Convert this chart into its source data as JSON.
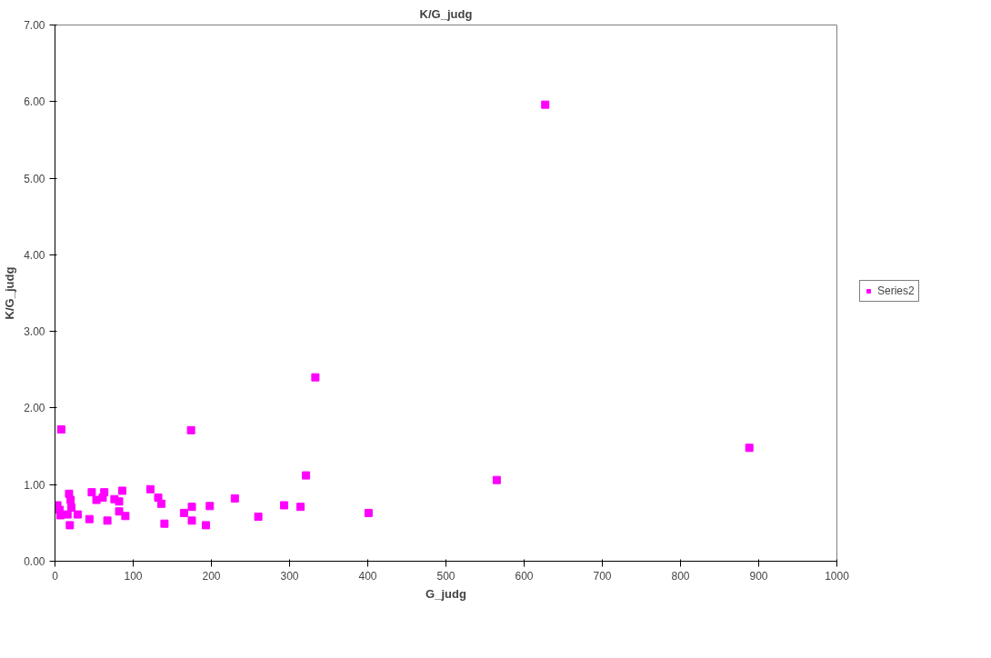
{
  "chart_data": {
    "type": "scatter",
    "title": "K/G_judg",
    "xlabel": "G_judg",
    "ylabel": "K/G_judg",
    "xlim": [
      0,
      1000
    ],
    "xticks": [
      0,
      100,
      200,
      300,
      400,
      500,
      600,
      700,
      800,
      900,
      1000
    ],
    "ylim": [
      0,
      7
    ],
    "yticks": [
      {
        "value": 0,
        "label": "0.00"
      },
      {
        "value": 1,
        "label": "1.00"
      },
      {
        "value": 2,
        "label": "2.00"
      },
      {
        "value": 3,
        "label": "3.00"
      },
      {
        "value": 4,
        "label": "4.00"
      },
      {
        "value": 5,
        "label": "5.00"
      },
      {
        "value": 6,
        "label": "6.00"
      },
      {
        "value": 7,
        "label": "7.00"
      }
    ],
    "grid": false,
    "legend": "right",
    "marker": "square",
    "series": [
      {
        "name": "Series2",
        "color": "#ff00ff",
        "x": [
          3,
          6,
          8,
          7,
          18,
          20,
          21,
          19,
          16,
          29,
          47,
          44,
          53,
          63,
          61,
          67,
          76,
          82,
          82,
          86,
          90,
          122,
          132,
          136,
          140,
          174,
          165,
          175,
          175,
          193,
          198,
          230,
          260,
          293,
          314,
          321,
          333,
          401,
          565,
          627,
          888
        ],
        "values": [
          0.73,
          0.67,
          1.72,
          0.6,
          0.88,
          0.8,
          0.7,
          0.47,
          0.61,
          0.61,
          0.9,
          0.55,
          0.8,
          0.9,
          0.83,
          0.53,
          0.81,
          0.78,
          0.65,
          0.92,
          0.59,
          0.94,
          0.83,
          0.75,
          0.49,
          1.71,
          0.63,
          0.71,
          0.53,
          0.47,
          0.72,
          0.82,
          0.58,
          0.73,
          0.71,
          1.12,
          2.4,
          0.63,
          1.06,
          5.96,
          1.48
        ]
      }
    ]
  }
}
